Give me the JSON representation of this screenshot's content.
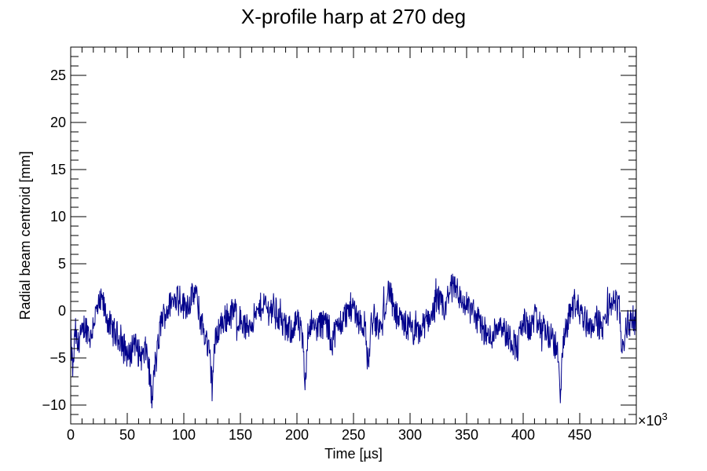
{
  "chart_data": {
    "type": "line",
    "title": "X-profile harp at 270 deg",
    "xlabel": "Time [µs]",
    "ylabel": "Radial beam centroid [mm]",
    "x_multiplier_label": "×10",
    "x_multiplier_exponent": "3",
    "xlim": [
      0,
      500
    ],
    "ylim": [
      -12,
      28
    ],
    "x_ticks": [
      0,
      50,
      100,
      150,
      200,
      250,
      300,
      350,
      400,
      450
    ],
    "x_tick_labels": [
      "0",
      "50",
      "100",
      "150",
      "200",
      "250",
      "300",
      "350",
      "400",
      "450"
    ],
    "y_ticks": [
      -10,
      -5,
      0,
      5,
      10,
      15,
      20,
      25
    ],
    "y_tick_labels": [
      "−10",
      "−5",
      "0",
      "5",
      "10",
      "15",
      "20",
      "25"
    ],
    "grid": false,
    "series_color": "#00008b",
    "series": [
      {
        "x": [
          0,
          2,
          4,
          6,
          8,
          10,
          12,
          15,
          18,
          20,
          22,
          25,
          28,
          30,
          33,
          36,
          40,
          44,
          48,
          52,
          56,
          60,
          64,
          67,
          70,
          72,
          74,
          76,
          78,
          80,
          85,
          90,
          95,
          100,
          105,
          110,
          115,
          120,
          123,
          125,
          127,
          130,
          135,
          140,
          145,
          150,
          155,
          160,
          165,
          170,
          175,
          180,
          185,
          190,
          195,
          200,
          205,
          207,
          209,
          212,
          215,
          220,
          225,
          230,
          235,
          240,
          245,
          250,
          255,
          260,
          263,
          266,
          270,
          275,
          278,
          282,
          285,
          290,
          295,
          300,
          305,
          310,
          315,
          320,
          325,
          330,
          335,
          340,
          345,
          350,
          355,
          360,
          365,
          370,
          375,
          380,
          385,
          390,
          395,
          400,
          405,
          410,
          415,
          420,
          425,
          430,
          433,
          436,
          440,
          445,
          450,
          455,
          460,
          465,
          470,
          475,
          480,
          485,
          488,
          490,
          495,
          499
        ],
        "y": [
          -3,
          -6.5,
          -2,
          -4,
          -2.5,
          -3,
          -1.5,
          -2,
          -3,
          -1,
          -0.5,
          0.5,
          1,
          0,
          -1,
          -2,
          -2.5,
          -3,
          -4,
          -5,
          -3,
          -4.5,
          -5,
          -4,
          -7,
          -10,
          -6,
          -5,
          -3,
          -1,
          0,
          1,
          2,
          0.5,
          1,
          2,
          -1,
          -3,
          -5,
          -8,
          -4,
          -2,
          -1,
          -0.5,
          0,
          -1,
          -2,
          -1,
          -0.5,
          1,
          0,
          0.5,
          -1,
          -2,
          -2,
          -1,
          -3,
          -8,
          -3,
          -1,
          -2,
          -1.5,
          -1,
          -3,
          -2,
          -1,
          0,
          0.5,
          -1,
          -1.5,
          -6,
          -1,
          -1.5,
          -2,
          1,
          2.5,
          0,
          -1,
          -1.5,
          -2,
          -2.5,
          -2,
          -1,
          0,
          1,
          0,
          2,
          3,
          1,
          0.5,
          0,
          -1,
          -2,
          -3,
          -2,
          -1,
          -2.5,
          -3,
          -4,
          -1,
          -2,
          -1,
          -1.5,
          -2,
          -3,
          -4,
          -8.5,
          -3,
          -1,
          1,
          0,
          -1,
          -1.5,
          -1,
          -2,
          0,
          1.5,
          0,
          -4.5,
          -2,
          -1,
          -1
        ]
      }
    ]
  }
}
